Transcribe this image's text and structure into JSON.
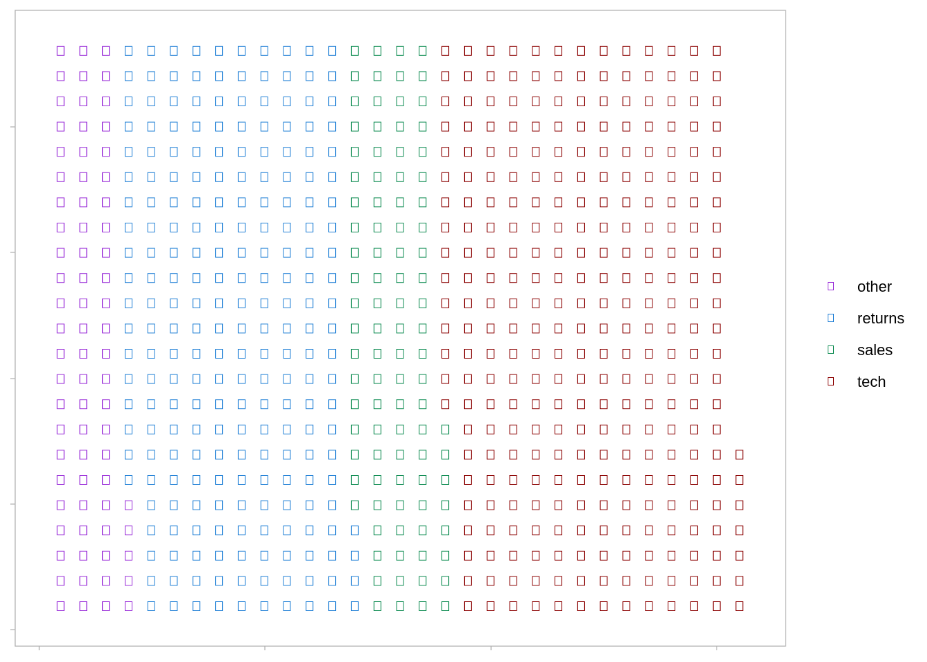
{
  "chart_data": {
    "type": "waffle",
    "title": "",
    "xlabel": "",
    "ylabel": "",
    "rows": 23,
    "columns": 31,
    "fill_order": "column-wise, bottom to top, left to right",
    "series": [
      {
        "name": "other",
        "count": 74,
        "color": "#9b30d9"
      },
      {
        "name": "returns",
        "count": 229,
        "color": "#1f7fd6"
      },
      {
        "name": "sales",
        "count": 96,
        "color": "#0a8a4f"
      },
      {
        "name": "tech",
        "count": 298,
        "color": "#8b0000"
      }
    ],
    "total": 697,
    "grid": false,
    "legend_position": "right"
  },
  "legend": {
    "items": [
      {
        "label": "other",
        "color": "#9b30d9"
      },
      {
        "label": "returns",
        "color": "#1f7fd6"
      },
      {
        "label": "sales",
        "color": "#0a8a4f"
      },
      {
        "label": "tech",
        "color": "#8b0000"
      }
    ]
  }
}
